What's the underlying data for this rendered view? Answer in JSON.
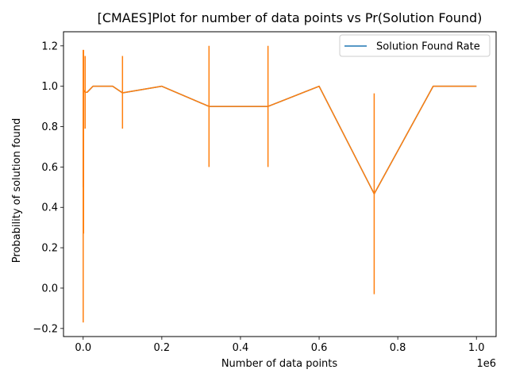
{
  "chart_data": {
    "type": "line",
    "title": "[CMAES]Plot for number of data points vs Pr(Solution Found)",
    "xlabel": "Number of data points",
    "ylabel": "Probability of solution found",
    "x_offset_label": "1e6",
    "xlim": [
      -50000,
      1050000
    ],
    "ylim": [
      -0.24,
      1.27
    ],
    "x_ticks": [
      0,
      200000,
      400000,
      600000,
      800000,
      1000000
    ],
    "x_tick_labels": [
      "0.0",
      "0.2",
      "0.4",
      "0.6",
      "0.8",
      "1.0"
    ],
    "y_ticks": [
      -0.2,
      0.0,
      0.2,
      0.4,
      0.6,
      0.8,
      1.0,
      1.2
    ],
    "y_tick_labels": [
      "−0.2",
      "0.0",
      "0.2",
      "0.4",
      "0.6",
      "0.8",
      "1.0",
      "1.2"
    ],
    "legend": {
      "location": "top-right",
      "entries": [
        "Solution Found Rate"
      ]
    },
    "series": [
      {
        "name": "Solution Found Rate",
        "color": "#1f77b4",
        "x": [
          100,
          1000,
          5000,
          10000,
          25000,
          50000,
          75000,
          100000,
          200000,
          320000,
          470000,
          600000,
          740000,
          890000,
          1000000
        ],
        "values": [
          0.5,
          0.98,
          0.97,
          0.97,
          1.0,
          1.0,
          1.0,
          0.967,
          1.0,
          0.9,
          0.9,
          1.0,
          0.467,
          1.0,
          1.0
        ]
      },
      {
        "name": "",
        "color": "#ff7f0e",
        "x": [
          100,
          1000,
          5000,
          10000,
          25000,
          50000,
          75000,
          100000,
          200000,
          320000,
          470000,
          600000,
          740000,
          890000,
          1000000
        ],
        "values": [
          0.5,
          0.98,
          0.97,
          0.97,
          1.0,
          1.0,
          1.0,
          0.967,
          1.0,
          0.9,
          0.9,
          1.0,
          0.467,
          1.0,
          1.0
        ],
        "errors": [
          [
            100,
            -0.17,
            1.18
          ],
          [
            1000,
            0.27,
            1.18
          ],
          [
            5000,
            0.79,
            1.15
          ],
          [
            100000,
            0.79,
            1.15
          ],
          [
            320000,
            0.6,
            1.2
          ],
          [
            470000,
            0.6,
            1.2
          ],
          [
            740000,
            -0.03,
            0.965
          ]
        ]
      }
    ]
  }
}
